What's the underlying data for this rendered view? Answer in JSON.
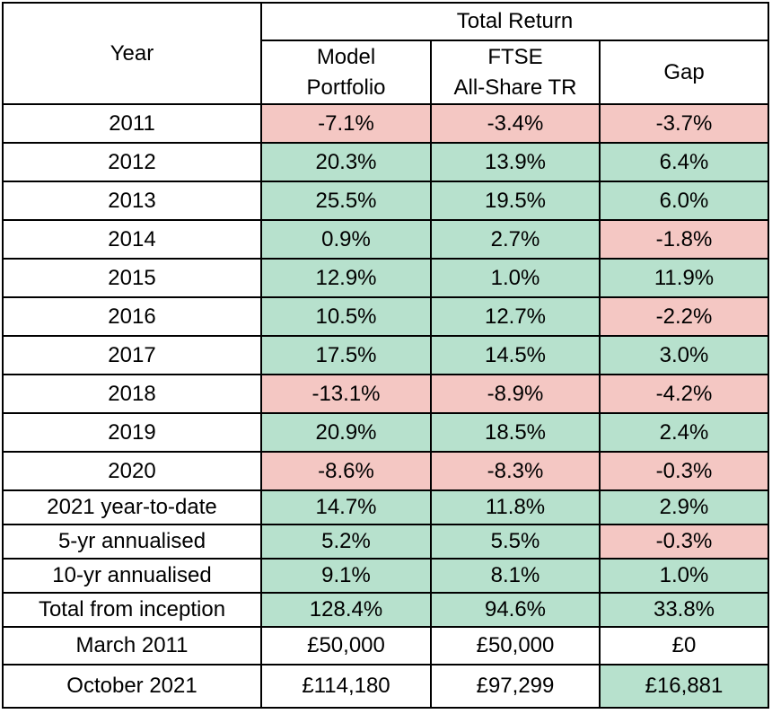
{
  "header": {
    "year": "Year",
    "group": "Total Return",
    "columns": [
      {
        "line1": "Model",
        "line2": "Portfolio"
      },
      {
        "line1": "FTSE",
        "line2": "All-Share TR"
      },
      {
        "line1": "Gap",
        "line2": ""
      }
    ]
  },
  "colors": {
    "positive": "#b7e1cd",
    "negative": "#f4c7c3",
    "neutral": "#ffffff"
  },
  "rows": [
    {
      "label": "2011",
      "cells": [
        {
          "v": "-7.1%",
          "s": "neg"
        },
        {
          "v": "-3.4%",
          "s": "neg"
        },
        {
          "v": "-3.7%",
          "s": "neg"
        }
      ]
    },
    {
      "label": "2012",
      "cells": [
        {
          "v": "20.3%",
          "s": "pos"
        },
        {
          "v": "13.9%",
          "s": "pos"
        },
        {
          "v": "6.4%",
          "s": "pos"
        }
      ]
    },
    {
      "label": "2013",
      "cells": [
        {
          "v": "25.5%",
          "s": "pos"
        },
        {
          "v": "19.5%",
          "s": "pos"
        },
        {
          "v": "6.0%",
          "s": "pos"
        }
      ]
    },
    {
      "label": "2014",
      "cells": [
        {
          "v": "0.9%",
          "s": "pos"
        },
        {
          "v": "2.7%",
          "s": "pos"
        },
        {
          "v": "-1.8%",
          "s": "neg"
        }
      ]
    },
    {
      "label": "2015",
      "cells": [
        {
          "v": "12.9%",
          "s": "pos"
        },
        {
          "v": "1.0%",
          "s": "pos"
        },
        {
          "v": "11.9%",
          "s": "pos"
        }
      ]
    },
    {
      "label": "2016",
      "cells": [
        {
          "v": "10.5%",
          "s": "pos"
        },
        {
          "v": "12.7%",
          "s": "pos"
        },
        {
          "v": "-2.2%",
          "s": "neg"
        }
      ]
    },
    {
      "label": "2017",
      "cells": [
        {
          "v": "17.5%",
          "s": "pos"
        },
        {
          "v": "14.5%",
          "s": "pos"
        },
        {
          "v": "3.0%",
          "s": "pos"
        }
      ]
    },
    {
      "label": "2018",
      "cells": [
        {
          "v": "-13.1%",
          "s": "neg"
        },
        {
          "v": "-8.9%",
          "s": "neg"
        },
        {
          "v": "-4.2%",
          "s": "neg"
        }
      ]
    },
    {
      "label": "2019",
      "cells": [
        {
          "v": "20.9%",
          "s": "pos"
        },
        {
          "v": "18.5%",
          "s": "pos"
        },
        {
          "v": "2.4%",
          "s": "pos"
        }
      ]
    },
    {
      "label": "2020",
      "cells": [
        {
          "v": "-8.6%",
          "s": "neg"
        },
        {
          "v": "-8.3%",
          "s": "neg"
        },
        {
          "v": "-0.3%",
          "s": "neg"
        }
      ]
    },
    {
      "label": "2021 year-to-date",
      "cells": [
        {
          "v": "14.7%",
          "s": "pos"
        },
        {
          "v": "11.8%",
          "s": "pos"
        },
        {
          "v": "2.9%",
          "s": "pos"
        }
      ]
    },
    {
      "label": "5-yr annualised",
      "cells": [
        {
          "v": "5.2%",
          "s": "pos"
        },
        {
          "v": "5.5%",
          "s": "pos"
        },
        {
          "v": "-0.3%",
          "s": "neg"
        }
      ]
    },
    {
      "label": "10-yr annualised",
      "cells": [
        {
          "v": "9.1%",
          "s": "pos"
        },
        {
          "v": "8.1%",
          "s": "pos"
        },
        {
          "v": "1.0%",
          "s": "pos"
        }
      ]
    },
    {
      "label": "Total from inception",
      "cells": [
        {
          "v": "128.4%",
          "s": "pos"
        },
        {
          "v": "94.6%",
          "s": "pos"
        },
        {
          "v": "33.8%",
          "s": "pos"
        }
      ]
    },
    {
      "label": "March 2011",
      "cells": [
        {
          "v": "£50,000",
          "s": "none"
        },
        {
          "v": "£50,000",
          "s": "none"
        },
        {
          "v": "£0",
          "s": "none"
        }
      ]
    },
    {
      "label": "October 2021",
      "cells": [
        {
          "v": "£114,180",
          "s": "none"
        },
        {
          "v": "£97,299",
          "s": "none"
        },
        {
          "v": "£16,881",
          "s": "pos"
        }
      ]
    }
  ]
}
